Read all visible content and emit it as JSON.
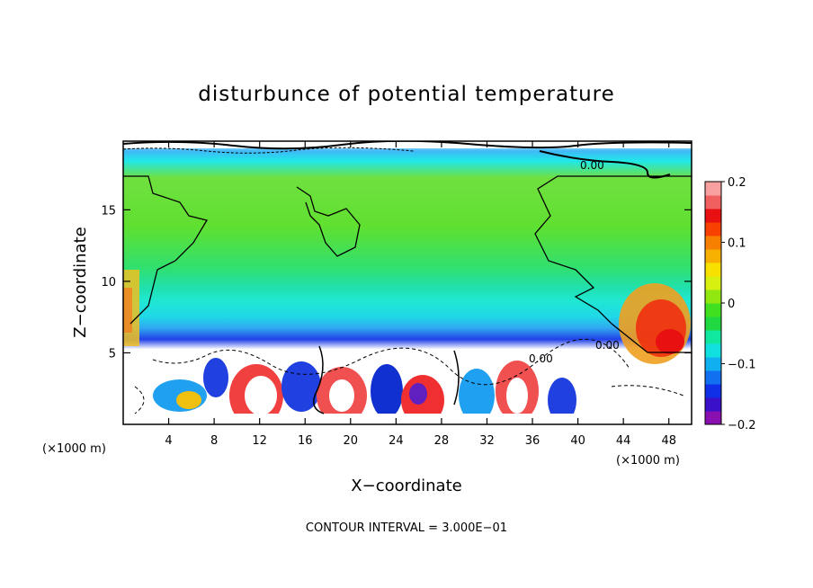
{
  "chart_data": {
    "type": "heatmap",
    "title": "disturbunce of potential temperature",
    "xlabel": "X−coordinate",
    "ylabel": "Z−coordinate",
    "x_unit": "(×1000 m)",
    "x_unit_right": "(×1000 m)",
    "xlim": [
      0,
      50
    ],
    "ylim": [
      0,
      19.8
    ],
    "x_ticks": [
      4,
      8,
      12,
      16,
      20,
      24,
      28,
      32,
      36,
      40,
      44,
      48
    ],
    "y_ticks": [
      5,
      10,
      15
    ],
    "colorbar": {
      "range": [
        -0.2,
        0.2
      ],
      "tick_labels": [
        "0.2",
        "0.1",
        "0",
        "−0.1",
        "−0.2"
      ],
      "tick_values": [
        0.2,
        0.1,
        0,
        -0.1,
        -0.2
      ],
      "colors": [
        "#8a0fb0",
        "#3a10c8",
        "#1030e8",
        "#1070f0",
        "#10b0f0",
        "#10e0e0",
        "#10e8a0",
        "#20d840",
        "#40e020",
        "#90e810",
        "#d8f010",
        "#f8e000",
        "#f8b000",
        "#f88000",
        "#f84000",
        "#e81010",
        "#f06060",
        "#f8a0a0"
      ]
    },
    "contour_interval_text": "CONTOUR INTERVAL = 3.000E−01",
    "contour_labels": [
      "0.00",
      "0.00",
      "0.00"
    ]
  }
}
